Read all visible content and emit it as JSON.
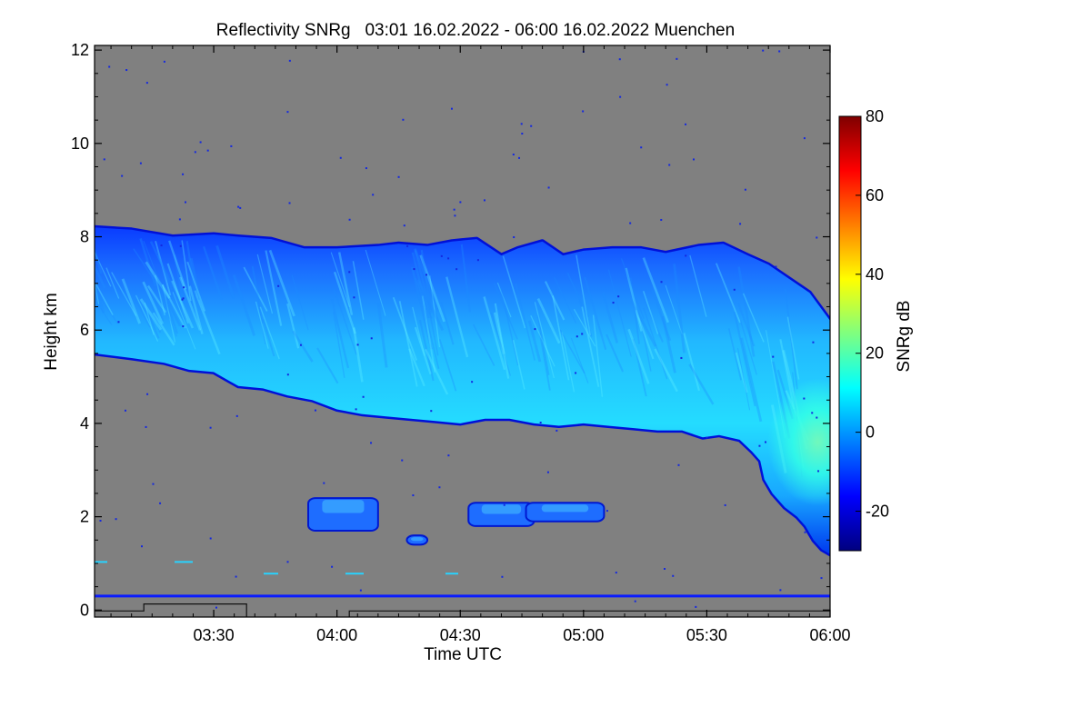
{
  "chart_data": {
    "type": "heatmap",
    "title": "Reflectivity SNRg   03:01 16.02.2022 - 06:00 16.02.2022 Muenchen",
    "xlabel": "Time UTC",
    "ylabel": "Height km",
    "x_range_minutes": [
      181,
      360
    ],
    "x_ticks": [
      {
        "minute": 210,
        "label": "03:30"
      },
      {
        "minute": 240,
        "label": "04:00"
      },
      {
        "minute": 270,
        "label": "04:30"
      },
      {
        "minute": 300,
        "label": "05:00"
      },
      {
        "minute": 330,
        "label": "05:30"
      },
      {
        "minute": 360,
        "label": "06:00"
      }
    ],
    "ylim": [
      -0.15,
      12.1
    ],
    "y_ticks": [
      0,
      2,
      4,
      6,
      8,
      10,
      12
    ],
    "background_color": "#808080",
    "colorbar": {
      "label": "SNRg dB",
      "range": [
        -30,
        80
      ],
      "ticks": [
        -20,
        0,
        20,
        40,
        60,
        80
      ],
      "stops": [
        "#00007f",
        "#0000ff",
        "#007fff",
        "#00ffff",
        "#7fff7f",
        "#ffff00",
        "#ff7f00",
        "#ff0000",
        "#7f0000"
      ]
    },
    "layers": {
      "main_cloud": {
        "top_km": [
          [
            181,
            8.2
          ],
          [
            190,
            8.15
          ],
          [
            200,
            8.0
          ],
          [
            210,
            8.05
          ],
          [
            216,
            8.0
          ],
          [
            224,
            7.95
          ],
          [
            232,
            7.75
          ],
          [
            240,
            7.75
          ],
          [
            250,
            7.8
          ],
          [
            255,
            7.85
          ],
          [
            262,
            7.8
          ],
          [
            268,
            7.9
          ],
          [
            274,
            7.95
          ],
          [
            280,
            7.6
          ],
          [
            284,
            7.75
          ],
          [
            290,
            7.9
          ],
          [
            295,
            7.6
          ],
          [
            300,
            7.7
          ],
          [
            307,
            7.75
          ],
          [
            314,
            7.75
          ],
          [
            320,
            7.65
          ],
          [
            328,
            7.8
          ],
          [
            334,
            7.85
          ],
          [
            340,
            7.6
          ],
          [
            345,
            7.4
          ],
          [
            350,
            7.1
          ],
          [
            355,
            6.8
          ],
          [
            360,
            6.2
          ]
        ],
        "base_km": [
          [
            181,
            5.5
          ],
          [
            190,
            5.4
          ],
          [
            198,
            5.3
          ],
          [
            204,
            5.15
          ],
          [
            210,
            5.1
          ],
          [
            216,
            4.8
          ],
          [
            222,
            4.75
          ],
          [
            228,
            4.6
          ],
          [
            234,
            4.5
          ],
          [
            240,
            4.3
          ],
          [
            246,
            4.2
          ],
          [
            252,
            4.15
          ],
          [
            258,
            4.1
          ],
          [
            264,
            4.05
          ],
          [
            270,
            4.0
          ],
          [
            276,
            4.1
          ],
          [
            282,
            4.1
          ],
          [
            288,
            4.0
          ],
          [
            294,
            3.95
          ],
          [
            300,
            4.0
          ],
          [
            306,
            3.95
          ],
          [
            312,
            3.9
          ],
          [
            318,
            3.85
          ],
          [
            324,
            3.85
          ],
          [
            329,
            3.7
          ],
          [
            333,
            3.75
          ],
          [
            338,
            3.65
          ],
          [
            341,
            3.4
          ],
          [
            343,
            3.2
          ],
          [
            344,
            2.8
          ],
          [
            346,
            2.5
          ],
          [
            349,
            2.2
          ],
          [
            352,
            2.0
          ],
          [
            354,
            1.8
          ],
          [
            356,
            1.5
          ],
          [
            358,
            1.3
          ],
          [
            360,
            1.2
          ]
        ]
      },
      "low_patches": [
        {
          "name": "patch-a",
          "x_minutes": [
            233,
            250
          ],
          "height_km": [
            1.7,
            2.4
          ]
        },
        {
          "name": "patch-b",
          "x_minutes": [
            272,
            288
          ],
          "height_km": [
            1.8,
            2.3
          ]
        },
        {
          "name": "patch-c",
          "x_minutes": [
            286,
            305
          ],
          "height_km": [
            1.9,
            2.3
          ]
        },
        {
          "name": "patch-d",
          "x_minutes": [
            257,
            262
          ],
          "height_km": [
            1.4,
            1.6
          ]
        }
      ],
      "ground_line_km": 0.3
    }
  }
}
